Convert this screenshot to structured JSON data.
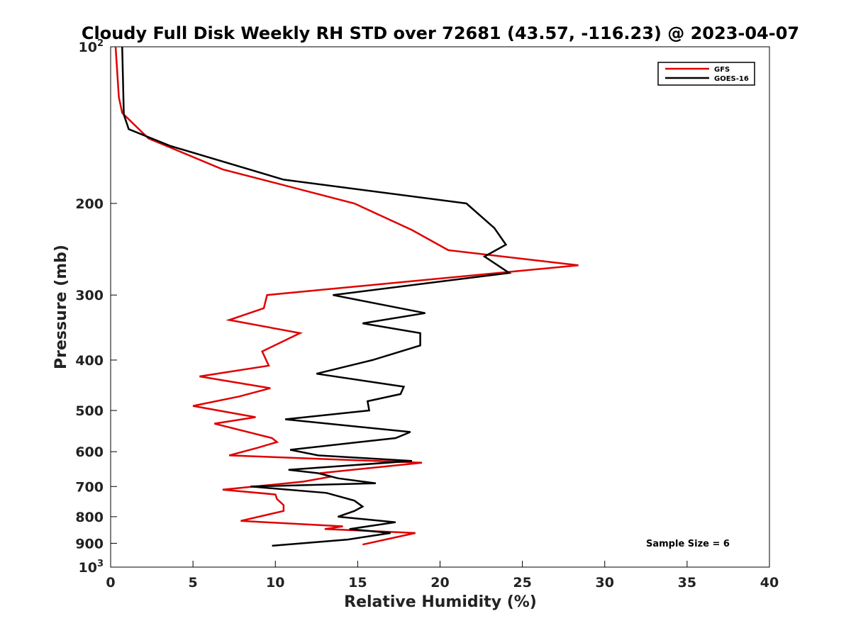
{
  "chart_data": {
    "type": "line",
    "title": "Cloudy Full Disk Weekly RH STD over 72681 (43.57, -116.23) @ 2023-04-07",
    "xlabel": "Relative Humidity (%)",
    "ylabel": "Pressure (mb)",
    "xlim": [
      0,
      40
    ],
    "ylim": [
      100,
      1000
    ],
    "y_scale": "log",
    "y_reversed": true,
    "grid": false,
    "legend_position": "top-right",
    "x_ticks": [
      0,
      5,
      10,
      15,
      20,
      25,
      30,
      35,
      40
    ],
    "y_ticks": [
      {
        "value": 100,
        "label": "10",
        "sup": "2"
      },
      {
        "value": 200,
        "label": "200"
      },
      {
        "value": 300,
        "label": "300"
      },
      {
        "value": 400,
        "label": "400"
      },
      {
        "value": 500,
        "label": "500"
      },
      {
        "value": 600,
        "label": "600"
      },
      {
        "value": 700,
        "label": "700"
      },
      {
        "value": 800,
        "label": "800"
      },
      {
        "value": 900,
        "label": "900"
      },
      {
        "value": 1000,
        "label": "10",
        "sup": "3"
      }
    ],
    "annotation": "Sample Size = 6",
    "series": [
      {
        "name": "GFS",
        "color": "#e00000",
        "points": [
          [
            0.3,
            100
          ],
          [
            0.5,
            125
          ],
          [
            0.7,
            134
          ],
          [
            2.3,
            150
          ],
          [
            6.8,
            172
          ],
          [
            14.8,
            200
          ],
          [
            18.3,
            225
          ],
          [
            20.5,
            246
          ],
          [
            28.4,
            263
          ],
          [
            9.5,
            300
          ],
          [
            9.3,
            318
          ],
          [
            7.2,
            335
          ],
          [
            11.5,
            355
          ],
          [
            9.2,
            385
          ],
          [
            9.6,
            410
          ],
          [
            5.4,
            430
          ],
          [
            9.7,
            453
          ],
          [
            7.8,
            470
          ],
          [
            5.0,
            490
          ],
          [
            8.8,
            515
          ],
          [
            6.3,
            530
          ],
          [
            9.8,
            565
          ],
          [
            10.1,
            575
          ],
          [
            8.9,
            590
          ],
          [
            7.2,
            610
          ],
          [
            18.9,
            630
          ],
          [
            12.7,
            660
          ],
          [
            13.4,
            670
          ],
          [
            11.7,
            685
          ],
          [
            6.8,
            710
          ],
          [
            10.0,
            725
          ],
          [
            10.1,
            740
          ],
          [
            10.5,
            760
          ],
          [
            10.5,
            780
          ],
          [
            7.9,
            815
          ],
          [
            14.1,
            835
          ],
          [
            13.0,
            845
          ],
          [
            18.5,
            860
          ],
          [
            15.3,
            905
          ]
        ]
      },
      {
        "name": "GOES-16",
        "color": "#000000",
        "points": [
          [
            0.7,
            100
          ],
          [
            0.8,
            135
          ],
          [
            1.1,
            144
          ],
          [
            3.6,
            155
          ],
          [
            10.5,
            180
          ],
          [
            21.6,
            200
          ],
          [
            23.3,
            223
          ],
          [
            24.0,
            240
          ],
          [
            22.7,
            253
          ],
          [
            24.2,
            272
          ],
          [
            13.5,
            300
          ],
          [
            19.1,
            325
          ],
          [
            15.3,
            340
          ],
          [
            18.8,
            355
          ],
          [
            18.8,
            375
          ],
          [
            15.9,
            400
          ],
          [
            12.5,
            425
          ],
          [
            17.8,
            450
          ],
          [
            17.6,
            465
          ],
          [
            15.6,
            480
          ],
          [
            15.7,
            500
          ],
          [
            10.6,
            520
          ],
          [
            18.2,
            550
          ],
          [
            17.3,
            565
          ],
          [
            10.9,
            595
          ],
          [
            12.6,
            610
          ],
          [
            18.3,
            625
          ],
          [
            10.8,
            650
          ],
          [
            12.6,
            660
          ],
          [
            13.8,
            675
          ],
          [
            16.1,
            690
          ],
          [
            8.5,
            700
          ],
          [
            13.1,
            720
          ],
          [
            14.8,
            745
          ],
          [
            15.3,
            765
          ],
          [
            14.8,
            780
          ],
          [
            13.8,
            800
          ],
          [
            17.3,
            820
          ],
          [
            14.5,
            845
          ],
          [
            17.0,
            860
          ],
          [
            14.4,
            885
          ],
          [
            9.8,
            910
          ]
        ]
      }
    ]
  }
}
